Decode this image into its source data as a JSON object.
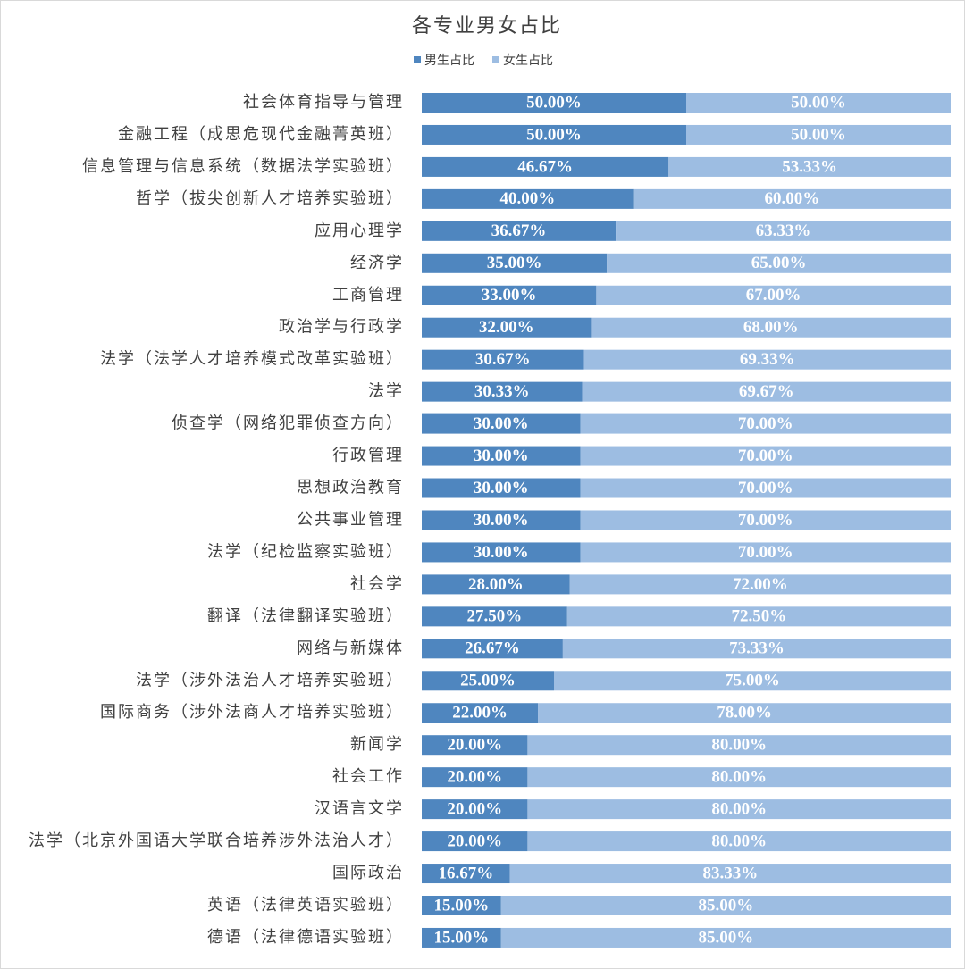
{
  "chart_data": {
    "type": "stacked_barh",
    "title": "各专业男女占比",
    "categories": [
      "社会体育指导与管理",
      "金融工程（成思危现代金融菁英班）",
      "信息管理与信息系统（数据法学实验班）",
      "哲学（拔尖创新人才培养实验班）",
      "应用心理学",
      "经济学",
      "工商管理",
      "政治学与行政学",
      "法学（法学人才培养模式改革实验班）",
      "法学",
      "侦查学（网络犯罪侦查方向）",
      "行政管理",
      "思想政治教育",
      "公共事业管理",
      "法学（纪检监察实验班）",
      "社会学",
      "翻译（法律翻译实验班）",
      "网络与新媒体",
      "法学（涉外法治人才培养实验班）",
      "国际商务（涉外法商人才培养实验班）",
      "新闻学",
      "社会工作",
      "汉语言文学",
      "法学（北京外国语大学联合培养涉外法治人才）",
      "国际政治",
      "英语（法律英语实验班）",
      "德语（法律德语实验班）"
    ],
    "series": [
      {
        "name": "男生占比",
        "color": "#4f86bf",
        "values": [
          50,
          50,
          46.67,
          40,
          36.67,
          35,
          33,
          32,
          30.67,
          30.33,
          30,
          30,
          30,
          30,
          30,
          28,
          27.5,
          26.67,
          25,
          22,
          20,
          20,
          20,
          20,
          16.67,
          15,
          15
        ],
        "value_labels": [
          "50.00%",
          "50.00%",
          "46.67%",
          "40.00%",
          "36.67%",
          "35.00%",
          "33.00%",
          "32.00%",
          "30.67%",
          "30.33%",
          "30.00%",
          "30.00%",
          "30.00%",
          "30.00%",
          "30.00%",
          "28.00%",
          "27.50%",
          "26.67%",
          "25.00%",
          "22.00%",
          "20.00%",
          "20.00%",
          "20.00%",
          "20.00%",
          "16.67%",
          "15.00%",
          "15.00%"
        ]
      },
      {
        "name": "女生占比",
        "color": "#9dbde2",
        "values": [
          50,
          50,
          53.33,
          60,
          63.33,
          65,
          67,
          68,
          69.33,
          69.67,
          70,
          70,
          70,
          70,
          70,
          72,
          72.5,
          73.33,
          75,
          78,
          80,
          80,
          80,
          80,
          83.33,
          85,
          85
        ],
        "value_labels": [
          "50.00%",
          "50.00%",
          "53.33%",
          "60.00%",
          "63.33%",
          "65.00%",
          "67.00%",
          "68.00%",
          "69.33%",
          "69.67%",
          "70.00%",
          "70.00%",
          "70.00%",
          "70.00%",
          "70.00%",
          "72.00%",
          "72.50%",
          "73.33%",
          "75.00%",
          "78.00%",
          "80.00%",
          "80.00%",
          "80.00%",
          "80.00%",
          "83.33%",
          "85.00%",
          "85.00%"
        ]
      }
    ],
    "xlim": [
      0,
      100
    ],
    "legend": "top"
  }
}
